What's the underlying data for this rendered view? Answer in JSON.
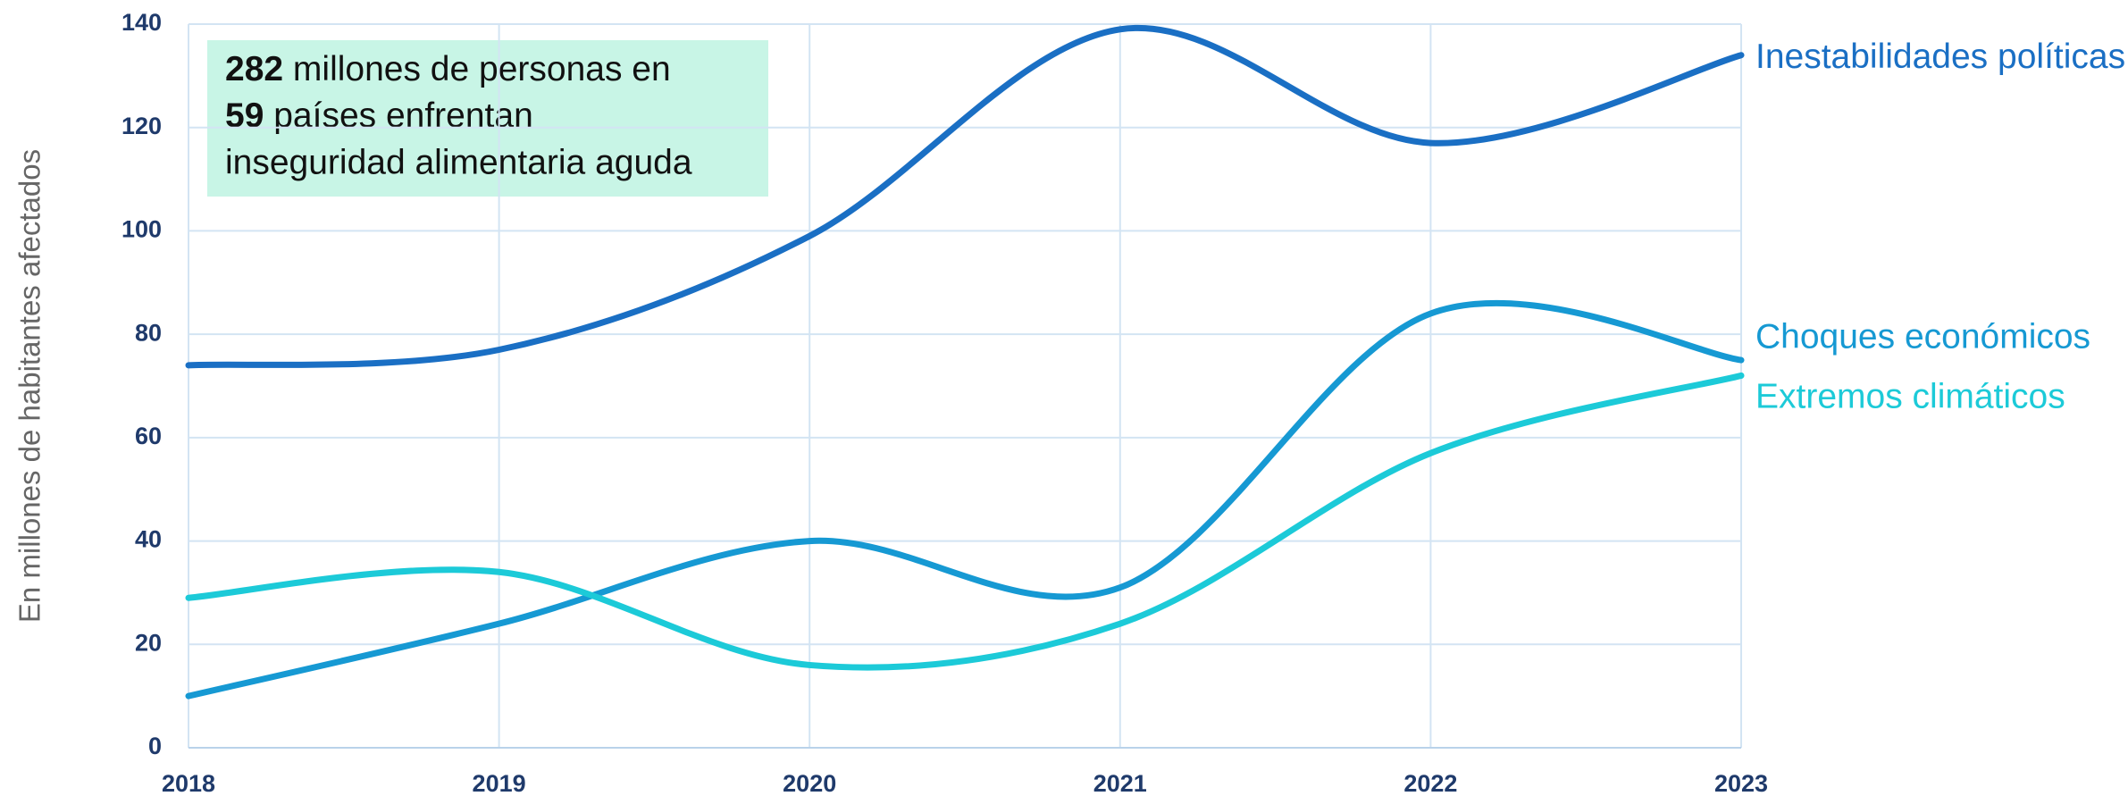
{
  "chart_data": {
    "type": "line",
    "y_label": "En millones de habitantes afectados",
    "annotation": [
      "282",
      " millones de personas en",
      "59",
      " países enfrentan",
      "inseguridad alimentaria aguda"
    ],
    "x": [
      2018,
      2019,
      2020,
      2021,
      2022,
      2023
    ],
    "xlim": [
      2018,
      2023
    ],
    "xticks": [
      2018,
      2019,
      2020,
      2021,
      2022,
      2023
    ],
    "ylim": [
      0,
      140
    ],
    "yticks": [
      0,
      20,
      40,
      60,
      80,
      100,
      120,
      140
    ],
    "grid": true,
    "series": [
      {
        "name": "Inestabilidades políticas",
        "color": "#1a6fc4",
        "values": [
          74,
          77,
          99,
          139,
          117,
          134
        ]
      },
      {
        "name": "Choques económicos",
        "color": "#1699d3",
        "values": [
          10,
          24,
          40,
          31,
          84,
          75
        ]
      },
      {
        "name": "Extremos climáticos",
        "color": "#1ccad8",
        "values": [
          29,
          34,
          16,
          24,
          57,
          72
        ]
      }
    ]
  }
}
